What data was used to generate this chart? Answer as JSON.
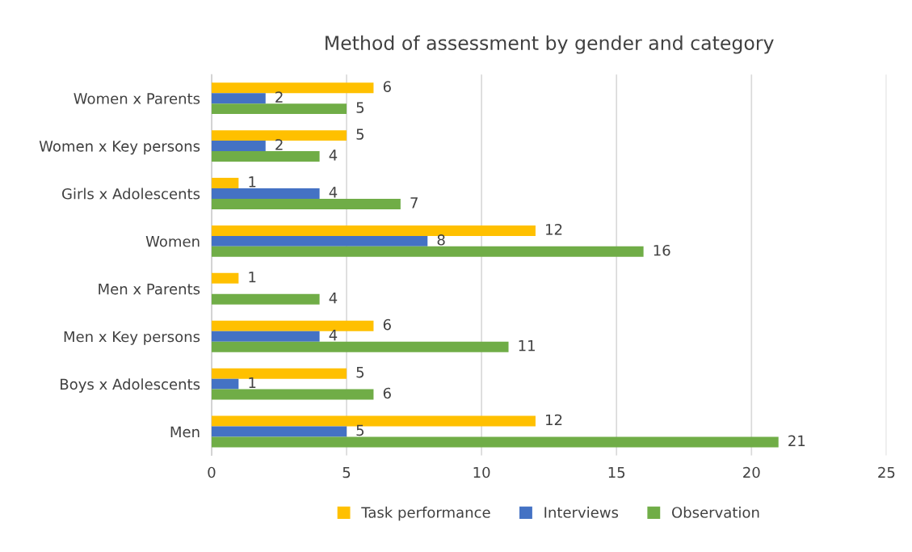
{
  "chart_data": {
    "type": "bar",
    "orientation": "horizontal",
    "title": "Method of assessment by gender and category",
    "categories": [
      "Women x Parents",
      "Women x Key persons",
      "Girls x Adolescents",
      "Women",
      "Men x Parents",
      "Men x Key persons",
      "Boys x Adolescents",
      "Men"
    ],
    "series": [
      {
        "name": "Task performance",
        "color": "#ffc000",
        "values": [
          6,
          5,
          1,
          12,
          1,
          6,
          5,
          12
        ]
      },
      {
        "name": "Interviews",
        "color": "#4472c4",
        "values": [
          2,
          2,
          4,
          8,
          null,
          4,
          1,
          5
        ]
      },
      {
        "name": "Observation",
        "color": "#70ad47",
        "values": [
          5,
          4,
          7,
          16,
          4,
          11,
          6,
          21
        ]
      }
    ],
    "xlim": [
      0,
      25
    ],
    "xticks": [
      0,
      5,
      10,
      15,
      20,
      25
    ],
    "grid": "x",
    "legend": "bottom",
    "data_labels": true
  }
}
